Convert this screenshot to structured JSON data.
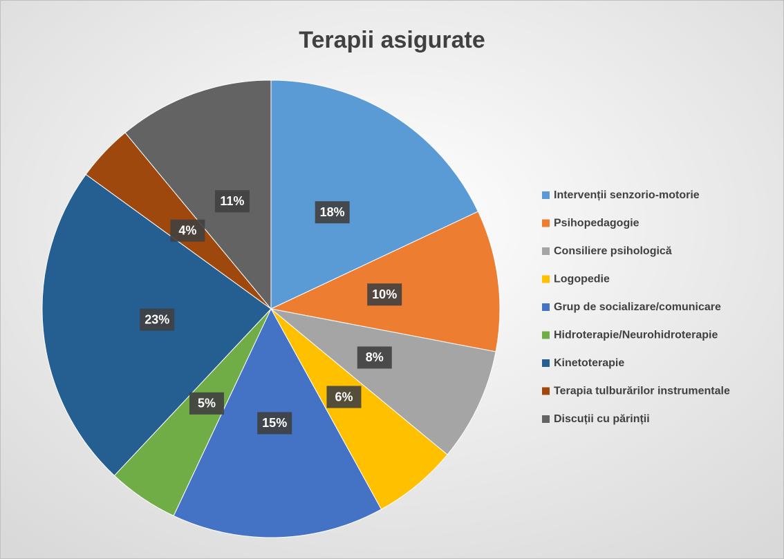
{
  "chart_data": {
    "type": "pie",
    "title": "Terapii asigurate",
    "categories": [
      "Intervenții senzorio-motorie",
      "Psihopedagogie",
      "Consiliere psihologică",
      "Logopedie",
      "Grup de socializare/comunicare",
      "Hidroterapie/Neurohidroterapie",
      "Kinetoterapie",
      "Terapia tulburărilor instrumentale",
      "Discuții cu părinții"
    ],
    "values": [
      18,
      10,
      8,
      6,
      15,
      5,
      23,
      4,
      11
    ],
    "value_labels": [
      "18%",
      "10%",
      "8%",
      "6%",
      "15%",
      "5%",
      "23%",
      "4%",
      "11%"
    ],
    "colors": [
      "#5b9bd5",
      "#ed7d31",
      "#a5a5a5",
      "#ffc000",
      "#4472c4",
      "#70ad47",
      "#255e91",
      "#9e480e",
      "#636363"
    ],
    "legend": "right"
  }
}
